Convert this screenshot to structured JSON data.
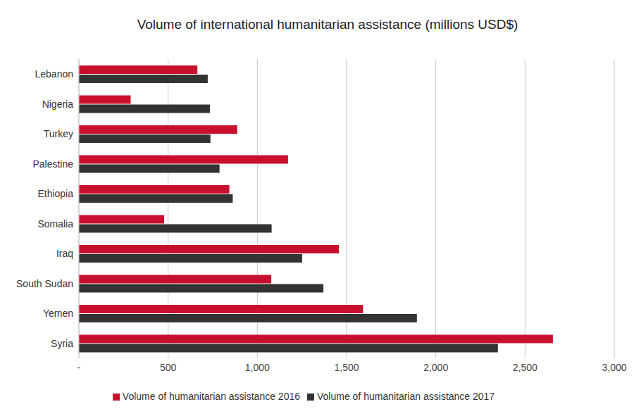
{
  "chart_data": {
    "type": "bar",
    "title": "Volume of international humanitarian assistance (millions USD$)",
    "orientation": "horizontal",
    "categories": [
      "Lebanon",
      "Nigeria",
      "Turkey",
      "Palestine",
      "Ethiopia",
      "Somalia",
      "Iraq",
      "South Sudan",
      "Yemen",
      "Syria"
    ],
    "series": [
      {
        "name": "Volume of humanitarian assistance 2016",
        "color": "#c8102e",
        "values": [
          664,
          290,
          887,
          1172,
          843,
          478,
          1457,
          1078,
          1592,
          2656
        ]
      },
      {
        "name": "Volume of humanitarian assistance 2017",
        "color": "#333333",
        "values": [
          722,
          734,
          737,
          788,
          862,
          1080,
          1251,
          1370,
          1894,
          2348
        ]
      }
    ],
    "xlim": [
      0,
      3000
    ],
    "xticks": [
      {
        "value": 0,
        "label": "-"
      },
      500,
      {
        "value": 1000,
        "label": "1,000"
      },
      {
        "value": 1500,
        "label": "1,500"
      },
      {
        "value": 2000,
        "label": "2,000"
      },
      {
        "value": 2500,
        "label": "2,500"
      },
      {
        "value": 3000,
        "label": "3,000"
      }
    ],
    "grid": true,
    "legend": "bottom"
  }
}
